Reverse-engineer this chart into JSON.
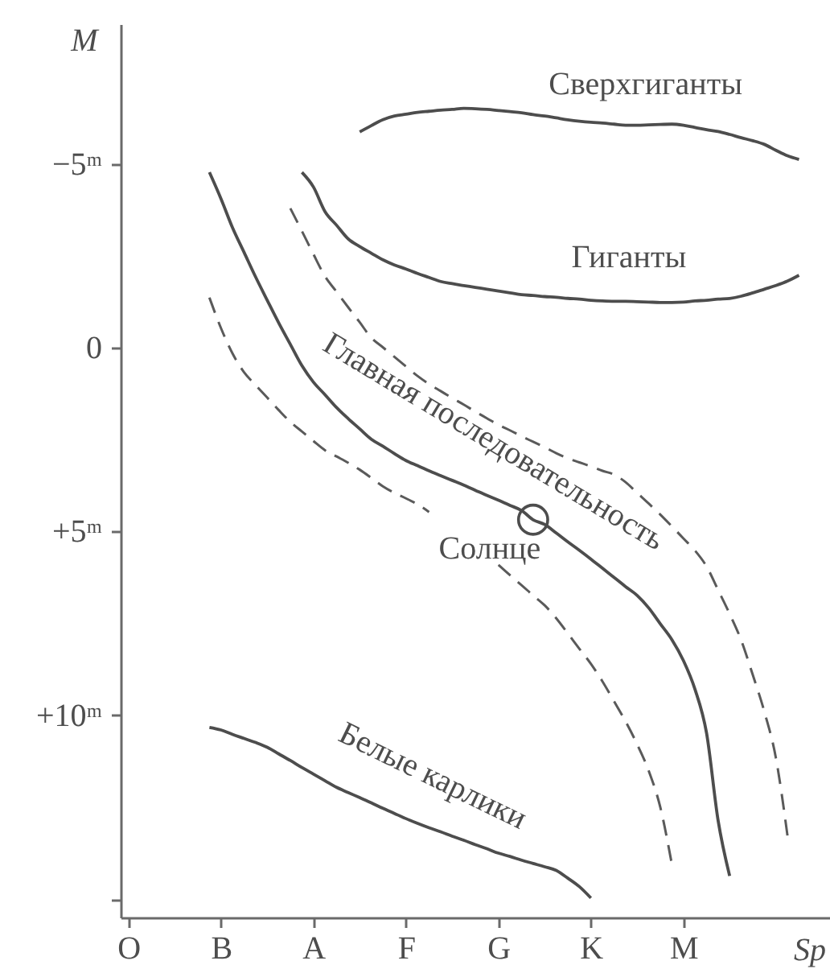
{
  "chart_data": {
    "type": "line",
    "xlabel": "Sp",
    "ylabel": "M",
    "categories": [
      "O",
      null,
      null,
      null,
      null,
      null,
      null,
      null,
      "B",
      null,
      null,
      null,
      null,
      null,
      null,
      null,
      "A",
      null,
      null,
      null,
      null,
      null,
      null,
      null,
      "F",
      null,
      null,
      null,
      null,
      null,
      null,
      null,
      "G",
      null,
      null,
      null,
      null,
      null,
      null,
      null,
      "K",
      null,
      null,
      null,
      null,
      null,
      null,
      null,
      "M",
      null,
      null,
      null,
      null,
      null,
      null,
      null,
      null,
      null,
      null,
      null,
      null
    ],
    "ylim": [
      15.5,
      -8.8
    ],
    "yticks": [
      {
        "value": -5,
        "label": "−5ᵐ"
      },
      0,
      {
        "value": 5,
        "label": "+5ᵐ"
      },
      {
        "value": 10,
        "label": "+10ᵐ"
      },
      {
        "value": 15,
        "label": null
      }
    ],
    "series": [
      {
        "name": "Сверхгиганты",
        "color": "#4d4d4d",
        "line_style": "solid",
        "values": [
          null,
          null,
          null,
          null,
          null,
          null,
          null,
          null,
          null,
          null,
          null,
          null,
          null,
          null,
          null,
          null,
          null,
          null,
          null,
          null,
          -5.87,
          -6.04,
          -6.2,
          -6.3,
          -6.35,
          -6.4,
          -6.43,
          -6.46,
          -6.48,
          -6.51,
          -6.5,
          -6.48,
          -6.45,
          -6.42,
          -6.39,
          -6.34,
          -6.3,
          -6.25,
          -6.2,
          -6.16,
          -6.13,
          -6.11,
          -6.08,
          -6.05,
          -6.05,
          -6.06,
          -6.07,
          -6.08,
          -6.05,
          -5.99,
          -5.93,
          -5.88,
          -5.8,
          -5.71,
          -5.63,
          -5.53,
          -5.37,
          -5.22,
          -5.12,
          null,
          null
        ]
      },
      {
        "name": "Гиганты",
        "color": "#4d4d4d",
        "line_style": "solid",
        "values": [
          null,
          null,
          null,
          null,
          null,
          null,
          null,
          null,
          null,
          null,
          null,
          null,
          null,
          null,
          null,
          -4.77,
          -4.37,
          -3.7,
          -3.33,
          -2.96,
          -2.75,
          -2.57,
          -2.39,
          -2.25,
          -2.14,
          -2.02,
          -1.91,
          -1.8,
          -1.74,
          -1.69,
          -1.64,
          -1.59,
          -1.54,
          -1.49,
          -1.44,
          -1.42,
          -1.39,
          -1.37,
          -1.34,
          -1.32,
          -1.29,
          -1.27,
          -1.26,
          -1.26,
          -1.25,
          -1.24,
          -1.23,
          -1.23,
          -1.24,
          -1.27,
          -1.29,
          -1.32,
          -1.34,
          -1.4,
          -1.49,
          -1.59,
          -1.69,
          -1.81,
          -1.97,
          null,
          null
        ]
      },
      {
        "name": "Главная последовательность",
        "color": "#4d4d4d",
        "line_style": "solid",
        "values": [
          null,
          null,
          null,
          null,
          null,
          null,
          null,
          -4.77,
          -4.05,
          -3.26,
          -2.59,
          -1.92,
          -1.29,
          -0.67,
          -0.09,
          0.49,
          0.94,
          1.28,
          1.63,
          1.93,
          2.21,
          2.49,
          2.68,
          2.88,
          3.07,
          3.21,
          3.35,
          3.48,
          3.61,
          3.74,
          3.88,
          4.02,
          4.15,
          4.29,
          4.43,
          4.68,
          4.81,
          5.04,
          5.28,
          5.51,
          5.75,
          6.0,
          6.25,
          6.5,
          6.74,
          7.08,
          7.51,
          7.94,
          8.51,
          9.29,
          10.48,
          12.86,
          14.37,
          null,
          null,
          null,
          null,
          null,
          null,
          null,
          null
        ]
      },
      {
        "color": "#5a5a5a",
        "line_style": "dashed",
        "values": [
          null,
          null,
          null,
          null,
          null,
          null,
          null,
          null,
          null,
          null,
          null,
          null,
          null,
          null,
          -3.79,
          -3.17,
          -2.54,
          -1.94,
          -1.52,
          -1.1,
          -0.69,
          -0.27,
          -0.01,
          0.25,
          0.51,
          0.77,
          0.99,
          1.18,
          1.37,
          1.55,
          1.74,
          1.92,
          2.1,
          2.25,
          2.41,
          2.56,
          2.71,
          2.87,
          3.01,
          3.12,
          3.23,
          3.35,
          3.45,
          3.66,
          3.95,
          4.24,
          4.54,
          4.86,
          5.19,
          5.52,
          5.95,
          6.59,
          7.24,
          7.96,
          8.9,
          9.9,
          11.16,
          13.27,
          null,
          null,
          null
        ]
      },
      {
        "color": "#5a5a5a",
        "line_style": "dashed",
        "values": [
          null,
          null,
          null,
          null,
          null,
          null,
          null,
          -1.36,
          -0.53,
          0.16,
          0.67,
          1.02,
          1.36,
          1.7,
          2.02,
          2.28,
          2.54,
          2.79,
          2.96,
          3.13,
          3.32,
          3.54,
          3.77,
          3.95,
          4.1,
          4.26,
          4.47,
          null,
          null,
          null,
          null,
          null,
          5.91,
          6.19,
          6.46,
          6.74,
          7.01,
          7.36,
          7.77,
          8.19,
          8.6,
          9.08,
          9.62,
          10.17,
          10.79,
          11.51,
          12.5,
          14.05,
          null,
          null,
          null,
          null,
          null,
          null,
          null,
          null,
          null,
          null,
          null,
          null,
          null
        ]
      },
      {
        "name": "Белые карлики",
        "color": "#4d4d4d",
        "line_style": "solid",
        "values": [
          null,
          null,
          null,
          null,
          null,
          null,
          null,
          10.33,
          10.4,
          10.52,
          10.63,
          10.74,
          10.87,
          11.05,
          11.23,
          11.42,
          11.6,
          11.78,
          11.96,
          12.1,
          12.24,
          12.38,
          12.53,
          12.67,
          12.81,
          12.94,
          13.06,
          13.17,
          13.29,
          13.4,
          13.52,
          13.63,
          13.75,
          13.84,
          13.94,
          14.03,
          14.12,
          14.22,
          14.43,
          14.66,
          14.97,
          null,
          null,
          null,
          null,
          null,
          null,
          null,
          null,
          null,
          null,
          null,
          null,
          null,
          null,
          null,
          null,
          null,
          null,
          null,
          null
        ]
      },
      {
        "name": "Солнце",
        "type": "scatter",
        "marker": "circle",
        "color": "#4d4d4d",
        "values": [
          null,
          null,
          null,
          null,
          null,
          null,
          null,
          null,
          null,
          null,
          null,
          null,
          null,
          null,
          null,
          null,
          null,
          null,
          null,
          null,
          null,
          null,
          null,
          null,
          null,
          null,
          null,
          null,
          null,
          null,
          null,
          null,
          null,
          null,
          null,
          4.68,
          null,
          null,
          null,
          null,
          null,
          null,
          null,
          null,
          null,
          null,
          null,
          null,
          null,
          null,
          null,
          null,
          null,
          null,
          null,
          null,
          null,
          null,
          null,
          null,
          null
        ]
      }
    ]
  }
}
